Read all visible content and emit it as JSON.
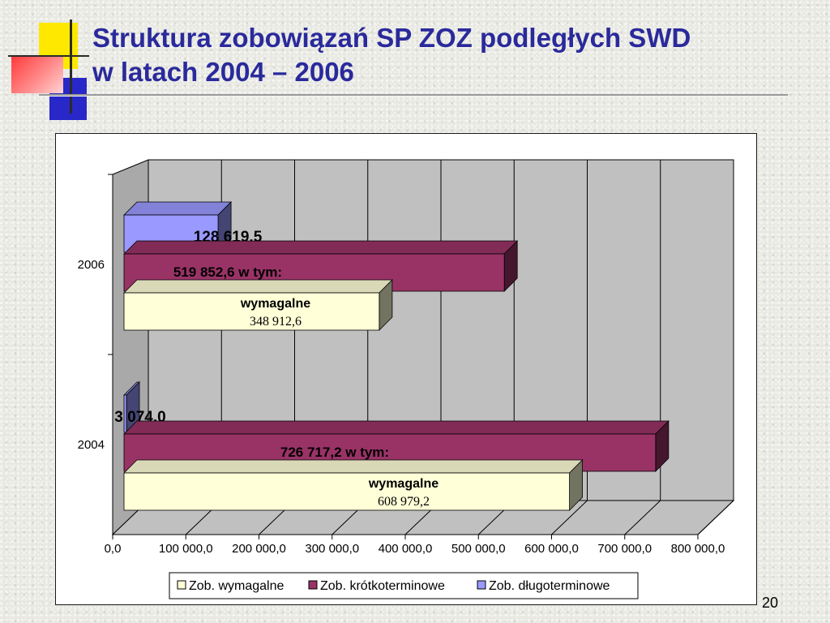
{
  "slide": {
    "title_line1": "Struktura zobowiązań SP ZOZ podległych SWD",
    "title_line2": "w latach 2004 – 2006",
    "page_number": "20"
  },
  "chart_data": {
    "type": "bar",
    "orientation": "horizontal",
    "stacked": false,
    "three_d": true,
    "categories": [
      "2004",
      "2006"
    ],
    "series": [
      {
        "name": "Zob. wymagalne",
        "values": [
          608979.2,
          348912.6
        ],
        "color": "#ffffd8",
        "labels": [
          "wymagalne\n608 979,2",
          "wymagalne\n348 912,6"
        ]
      },
      {
        "name": "Zob. krótkoterminowe",
        "values": [
          726717.2,
          519852.6
        ],
        "color": "#993366",
        "labels": [
          "726 717,2 w tym:",
          "519 852,6 w tym:"
        ]
      },
      {
        "name": "Zob. długoterminowe",
        "values": [
          3074.0,
          128619.5
        ],
        "color": "#9999ff",
        "labels": [
          "3 074,0",
          "128 619,5"
        ]
      }
    ],
    "xlim": [
      0,
      800000
    ],
    "ticks": [
      "0,0",
      "100 000,0",
      "200 000,0",
      "300 000,0",
      "400 000,0",
      "500 000,0",
      "600 000,0",
      "700 000,0",
      "800 000,0"
    ],
    "grid": true,
    "legend_position": "bottom",
    "wall_color": "#c0c0c0",
    "floor_color": "#c0c0c0"
  }
}
